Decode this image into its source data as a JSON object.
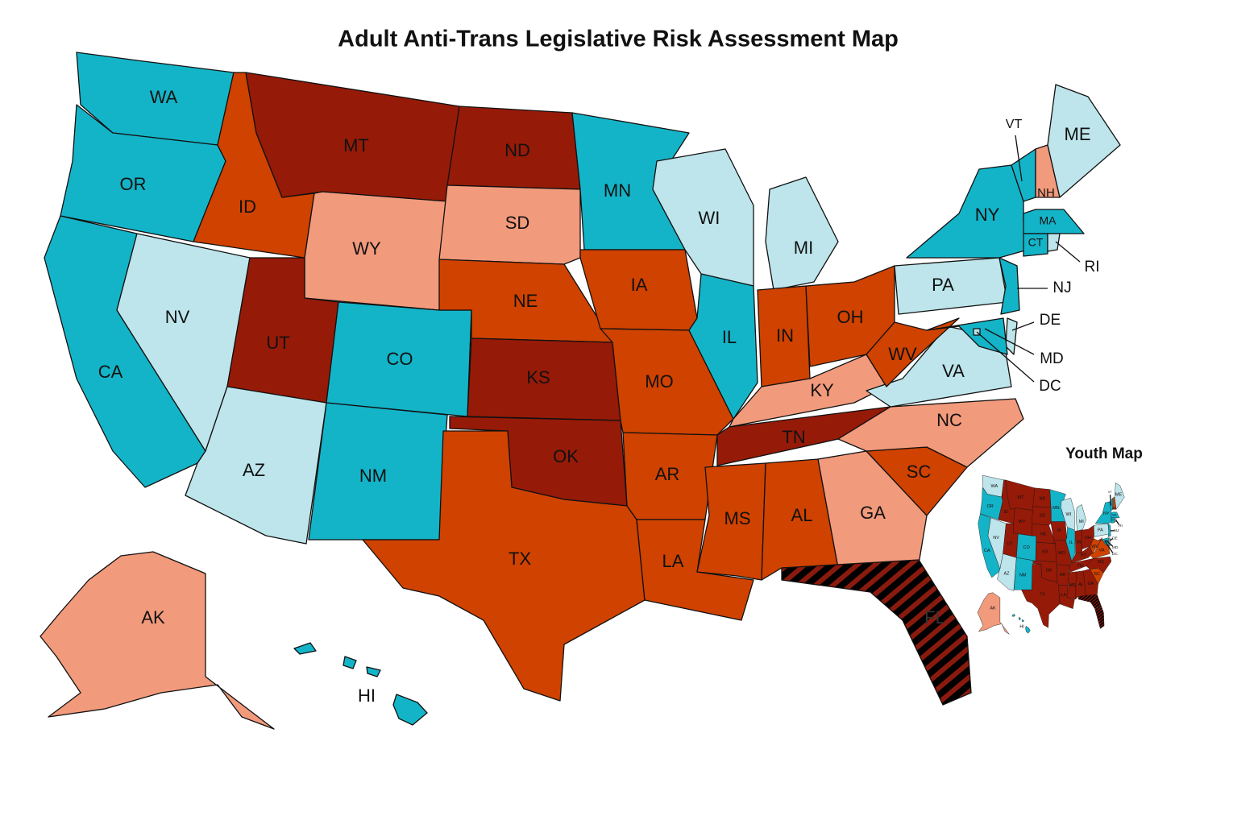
{
  "title": "Adult Anti-Trans Legislative Risk Assessment Map",
  "inset_title": "Youth Map",
  "hatch_color": "#8b1a0e",
  "states": [
    {
      "abbr": "WA",
      "adult_color": "#14b4c8",
      "youth_color": "#bde5eb"
    },
    {
      "abbr": "OR",
      "adult_color": "#14b4c8",
      "youth_color": "#14b4c8"
    },
    {
      "abbr": "CA",
      "adult_color": "#14b4c8",
      "youth_color": "#14b4c8"
    },
    {
      "abbr": "NV",
      "adult_color": "#bde5eb",
      "youth_color": "#bde5eb"
    },
    {
      "abbr": "ID",
      "adult_color": "#cf4200",
      "youth_color": "#961a08"
    },
    {
      "abbr": "MT",
      "adult_color": "#961a08",
      "youth_color": "#961a08"
    },
    {
      "abbr": "WY",
      "adult_color": "#f29a7c",
      "youth_color": "#961a08"
    },
    {
      "abbr": "UT",
      "adult_color": "#961a08",
      "youth_color": "#961a08"
    },
    {
      "abbr": "CO",
      "adult_color": "#14b4c8",
      "youth_color": "#14b4c8"
    },
    {
      "abbr": "AZ",
      "adult_color": "#bde5eb",
      "youth_color": "#bde5eb"
    },
    {
      "abbr": "NM",
      "adult_color": "#14b4c8",
      "youth_color": "#14b4c8"
    },
    {
      "abbr": "ND",
      "adult_color": "#961a08",
      "youth_color": "#961a08"
    },
    {
      "abbr": "SD",
      "adult_color": "#f29a7c",
      "youth_color": "#961a08"
    },
    {
      "abbr": "NE",
      "adult_color": "#cf4200",
      "youth_color": "#961a08"
    },
    {
      "abbr": "KS",
      "adult_color": "#961a08",
      "youth_color": "#961a08"
    },
    {
      "abbr": "OK",
      "adult_color": "#961a08",
      "youth_color": "#961a08"
    },
    {
      "abbr": "TX",
      "adult_color": "#cf4200",
      "youth_color": "#961a08"
    },
    {
      "abbr": "MN",
      "adult_color": "#14b4c8",
      "youth_color": "#14b4c8"
    },
    {
      "abbr": "IA",
      "adult_color": "#cf4200",
      "youth_color": "#961a08"
    },
    {
      "abbr": "MO",
      "adult_color": "#cf4200",
      "youth_color": "#961a08"
    },
    {
      "abbr": "AR",
      "adult_color": "#cf4200",
      "youth_color": "#961a08"
    },
    {
      "abbr": "LA",
      "adult_color": "#cf4200",
      "youth_color": "#961a08"
    },
    {
      "abbr": "WI",
      "adult_color": "#bde5eb",
      "youth_color": "#bde5eb"
    },
    {
      "abbr": "IL",
      "adult_color": "#14b4c8",
      "youth_color": "#14b4c8"
    },
    {
      "abbr": "MI",
      "adult_color": "#bde5eb",
      "youth_color": "#bde5eb"
    },
    {
      "abbr": "IN",
      "adult_color": "#cf4200",
      "youth_color": "#961a08"
    },
    {
      "abbr": "OH",
      "adult_color": "#cf4200",
      "youth_color": "#961a08"
    },
    {
      "abbr": "KY",
      "adult_color": "#f29a7c",
      "youth_color": "#961a08"
    },
    {
      "abbr": "TN",
      "adult_color": "#961a08",
      "youth_color": "#961a08"
    },
    {
      "abbr": "MS",
      "adult_color": "#cf4200",
      "youth_color": "#961a08"
    },
    {
      "abbr": "AL",
      "adult_color": "#cf4200",
      "youth_color": "#961a08"
    },
    {
      "abbr": "GA",
      "adult_color": "#f29a7c",
      "youth_color": "#961a08"
    },
    {
      "abbr": "FL",
      "adult_color": "#000000",
      "youth_color": "#000000",
      "hatched": true
    },
    {
      "abbr": "SC",
      "adult_color": "#cf4200",
      "youth_color": "#cf4200"
    },
    {
      "abbr": "NC",
      "adult_color": "#f29a7c",
      "youth_color": "#961a08"
    },
    {
      "abbr": "VA",
      "adult_color": "#bde5eb",
      "youth_color": "#cf4200"
    },
    {
      "abbr": "WV",
      "adult_color": "#cf4200",
      "youth_color": "#cf4200"
    },
    {
      "abbr": "PA",
      "adult_color": "#bde5eb",
      "youth_color": "#bde5eb"
    },
    {
      "abbr": "NY",
      "adult_color": "#14b4c8",
      "youth_color": "#14b4c8"
    },
    {
      "abbr": "VT",
      "adult_color": "#14b4c8",
      "youth_color": "#14b4c8"
    },
    {
      "abbr": "NH",
      "adult_color": "#f29a7c",
      "youth_color": "#cf4200"
    },
    {
      "abbr": "ME",
      "adult_color": "#bde5eb",
      "youth_color": "#bde5eb"
    },
    {
      "abbr": "MA",
      "adult_color": "#14b4c8",
      "youth_color": "#14b4c8"
    },
    {
      "abbr": "CT",
      "adult_color": "#14b4c8",
      "youth_color": "#14b4c8"
    },
    {
      "abbr": "RI",
      "adult_color": "#bde5eb",
      "youth_color": "#bde5eb"
    },
    {
      "abbr": "NJ",
      "adult_color": "#14b4c8",
      "youth_color": "#14b4c8"
    },
    {
      "abbr": "DE",
      "adult_color": "#bde5eb",
      "youth_color": "#bde5eb"
    },
    {
      "abbr": "MD",
      "adult_color": "#14b4c8",
      "youth_color": "#14b4c8"
    },
    {
      "abbr": "DC",
      "adult_color": "#bde5eb",
      "youth_color": "#bde5eb"
    },
    {
      "abbr": "AK",
      "adult_color": "#f29a7c",
      "youth_color": "#f29a7c"
    },
    {
      "abbr": "HI",
      "adult_color": "#14b4c8",
      "youth_color": "#14b4c8"
    }
  ]
}
